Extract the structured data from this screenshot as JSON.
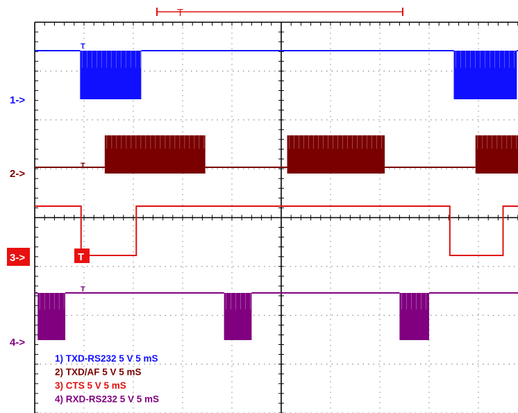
{
  "chart_data": {
    "type": "line",
    "title": "",
    "xlabel": "",
    "ylabel": "",
    "grid": true,
    "x_divisions": 10,
    "y_divisions": 8,
    "x_units": "mS",
    "x_range": [
      0,
      50
    ],
    "trigger_label": "T",
    "channel_markers": [
      "1->",
      "2->",
      "3->",
      "4->"
    ],
    "legend": [
      "1) TXD-RS232  5  V   5 mS",
      "2) TXD/AF  5  V   5 mS",
      "3) CTS  5  V   5 mS",
      "4) RXD-RS232  5  V  5 mS"
    ],
    "legend_position": "bottom-left",
    "colors": {
      "ch1": "#1010ff",
      "ch2": "#7a0000",
      "ch3": "#e01010",
      "ch4": "#800080",
      "grid": "#000000",
      "marker3_bg": "#e81010"
    },
    "series": [
      {
        "name": "TXD-RS232",
        "volts_per_div": 5,
        "idle_level": "high",
        "bursts_ms": [
          [
            4.6,
            10.8
          ],
          [
            42.5,
            48.9
          ]
        ]
      },
      {
        "name": "TXD/AF",
        "volts_per_div": 5,
        "idle_level": "mid",
        "bursts_ms": [
          [
            7.1,
            17.3
          ],
          [
            25.6,
            35.5
          ],
          [
            44.7,
            50.0
          ]
        ]
      },
      {
        "name": "CTS",
        "volts_per_div": 5,
        "idle_level": "high",
        "steps": [
          [
            0,
            1
          ],
          [
            4.7,
            0
          ],
          [
            10.3,
            1
          ],
          [
            42.1,
            0
          ],
          [
            47.5,
            1
          ],
          [
            50,
            1
          ]
        ]
      },
      {
        "name": "RXD-RS232",
        "volts_per_div": 5,
        "idle_level": "high",
        "bursts_ms": [
          [
            0.3,
            3.1
          ],
          [
            19.2,
            22.0
          ],
          [
            37.0,
            40.0
          ]
        ]
      }
    ]
  }
}
